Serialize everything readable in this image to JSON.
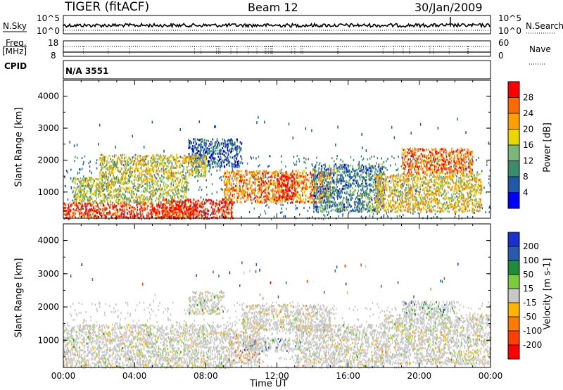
{
  "header": {
    "station": "TIGER (fitACF)",
    "beam": "Beam 12",
    "date": "30/Jan/2009"
  },
  "top_panel": {
    "left_label": "N.Sky",
    "right_label": "N.Search",
    "left_ticks": [
      "10^5",
      "10^0"
    ],
    "right_ticks": [
      "10^5",
      "10^0"
    ]
  },
  "freq_panel": {
    "left_label_line1": "Freq.",
    "left_label_line2": "[MHz]",
    "cpid_label": "CPID",
    "right_label": "Nave",
    "left_ticks": [
      "18",
      "8"
    ],
    "right_ticks": [
      "60",
      "0"
    ],
    "cpid_text": "N/A  3551"
  },
  "chart_data": [
    {
      "type": "heatmap",
      "title": "",
      "xlabel": "",
      "ylabel": "Slant Range [km]",
      "ylim": [
        180,
        4500
      ],
      "xlim": [
        "00:00",
        "24:00"
      ],
      "yticks": [
        "1000",
        "2000",
        "3000",
        "4000"
      ],
      "colorbar": {
        "label": "Power [dB]",
        "ticks": [
          "28",
          "24",
          "20",
          "16",
          "12",
          "8",
          "4"
        ],
        "colors": [
          "#ff0000",
          "#ff6a00",
          "#ffa000",
          "#e8d800",
          "#7ab87a",
          "#3a8c6a",
          "#1e5aa8",
          "#0000ff"
        ]
      },
      "regions": [
        {
          "t0": 0,
          "t1": 7.5,
          "r0": 200,
          "r1": 700,
          "level": 0.9
        },
        {
          "t0": 0.5,
          "t1": 7,
          "r0": 700,
          "r1": 1500,
          "level": 0.5
        },
        {
          "t0": 5.5,
          "t1": 9.5,
          "r0": 200,
          "r1": 800,
          "level": 0.95
        },
        {
          "t0": 7,
          "t1": 10,
          "r0": 1800,
          "r1": 2700,
          "level": 0.2
        },
        {
          "t0": 9,
          "t1": 15,
          "r0": 700,
          "r1": 1700,
          "level": 0.75
        },
        {
          "t0": 12,
          "t1": 13,
          "r0": 800,
          "r1": 1600,
          "level": 0.95
        },
        {
          "t0": 14,
          "t1": 18,
          "r0": 400,
          "r1": 1900,
          "level": 0.3
        },
        {
          "t0": 17.5,
          "t1": 23.5,
          "r0": 400,
          "r1": 1600,
          "level": 0.6
        },
        {
          "t0": 19,
          "t1": 23,
          "r0": 1600,
          "r1": 2400,
          "level": 0.8
        },
        {
          "t0": 2,
          "t1": 8,
          "r0": 1500,
          "r1": 2200,
          "level": 0.55
        }
      ]
    },
    {
      "type": "heatmap",
      "title": "",
      "xlabel": "Time UT",
      "ylabel": "Slant Range [km]",
      "ylim": [
        180,
        4500
      ],
      "xlim": [
        "00:00",
        "24:00"
      ],
      "xticks": [
        "00:00",
        "04:00",
        "08:00",
        "12:00",
        "16:00",
        "20:00",
        "00:00"
      ],
      "yticks": [
        "1000",
        "2000",
        "3000",
        "4000"
      ],
      "colorbar": {
        "label": "Velocity [m s-1]",
        "ticks": [
          "200",
          "100",
          "50",
          "15",
          "-15",
          "-50",
          "-100",
          "-200"
        ],
        "colors": [
          "#1a2fd0",
          "#2a5ab0",
          "#1e8a3a",
          "#7acc3a",
          "#c8c8c8",
          "#ffb400",
          "#ff7a00",
          "#ff4000",
          "#ff0000"
        ]
      },
      "regions": [
        {
          "t0": 0,
          "t1": 9.5,
          "r0": 200,
          "r1": 1500,
          "level": 0.5
        },
        {
          "t0": 9.5,
          "t1": 11,
          "r0": 300,
          "r1": 1300,
          "level": 0.7
        },
        {
          "t0": 10,
          "t1": 13,
          "r0": 700,
          "r1": 1100,
          "level": 0.25
        },
        {
          "t0": 13,
          "t1": 18,
          "r0": 200,
          "r1": 1500,
          "level": 0.5
        },
        {
          "t0": 18,
          "t1": 24,
          "r0": 300,
          "r1": 1800,
          "level": 0.5
        },
        {
          "t0": 7,
          "t1": 9,
          "r0": 1800,
          "r1": 2500,
          "level": 0.45
        },
        {
          "t0": 10,
          "t1": 15,
          "r0": 1300,
          "r1": 2100,
          "level": 0.55
        },
        {
          "t0": 19,
          "t1": 22,
          "r0": 1800,
          "r1": 2200,
          "level": 0.35
        }
      ]
    }
  ]
}
